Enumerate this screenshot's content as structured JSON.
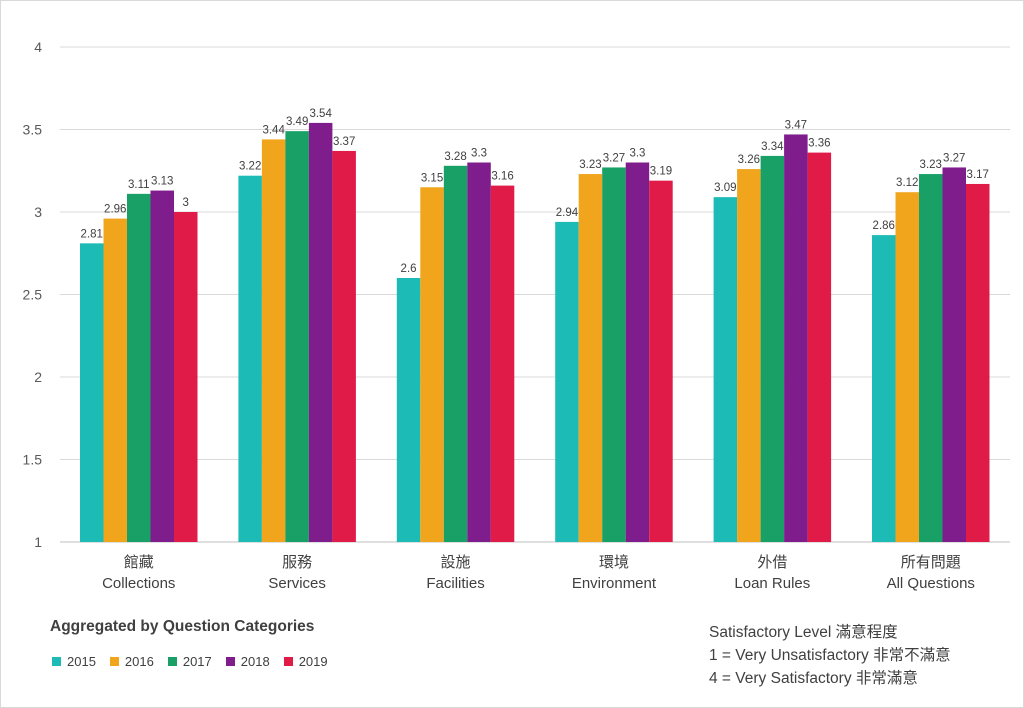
{
  "chart_data": {
    "type": "bar",
    "categories": [
      {
        "zh": "館藏",
        "en": "Collections"
      },
      {
        "zh": "服務",
        "en": "Services"
      },
      {
        "zh": "設施",
        "en": "Facilities"
      },
      {
        "zh": "環境",
        "en": "Environment"
      },
      {
        "zh": "外借",
        "en": "Loan Rules"
      },
      {
        "zh": "所有問題",
        "en": "All Questions"
      }
    ],
    "series": [
      {
        "name": "2015",
        "color": "#1dbbb6",
        "values": [
          2.81,
          3.22,
          2.6,
          2.94,
          3.09,
          2.86
        ]
      },
      {
        "name": "2016",
        "color": "#f0a51c",
        "values": [
          2.96,
          3.44,
          3.15,
          3.23,
          3.26,
          3.12
        ]
      },
      {
        "name": "2017",
        "color": "#19a066",
        "values": [
          3.11,
          3.49,
          3.28,
          3.27,
          3.34,
          3.23
        ]
      },
      {
        "name": "2018",
        "color": "#7f1d8c",
        "values": [
          3.13,
          3.54,
          3.3,
          3.3,
          3.47,
          3.27
        ]
      },
      {
        "name": "2019",
        "color": "#e01b48",
        "values": [
          3,
          3.37,
          3.16,
          3.19,
          3.36,
          3.17
        ]
      }
    ],
    "data_labels": [
      [
        "2.81",
        "3.22",
        "2.6",
        "2.94",
        "3.09",
        "2.86"
      ],
      [
        "2.96",
        "3.44",
        "3.15",
        "3.23",
        "3.26",
        "3.12"
      ],
      [
        "3.11",
        "3.49",
        "3.28",
        "3.27",
        "3.34",
        "3.23"
      ],
      [
        "3.13",
        "3.54",
        "3.3",
        "3.3",
        "3.47",
        "3.27"
      ],
      [
        "3",
        "3.37",
        "3.16",
        "3.19",
        "3.36",
        "3.17"
      ]
    ],
    "ylim": [
      1,
      4
    ],
    "yticks": [
      "1",
      "1.5",
      "2",
      "2.5",
      "3",
      "3.5",
      "4"
    ],
    "grid": true,
    "legend_position": "bottom-left"
  },
  "legend": {
    "title": "Aggregated by Question Categories"
  },
  "note": {
    "line1": "Satisfactory Level 滿意程度",
    "line2": "1 = Very Unsatisfactory 非常不滿意",
    "line3": "4 = Very Satisfactory 非常滿意"
  }
}
